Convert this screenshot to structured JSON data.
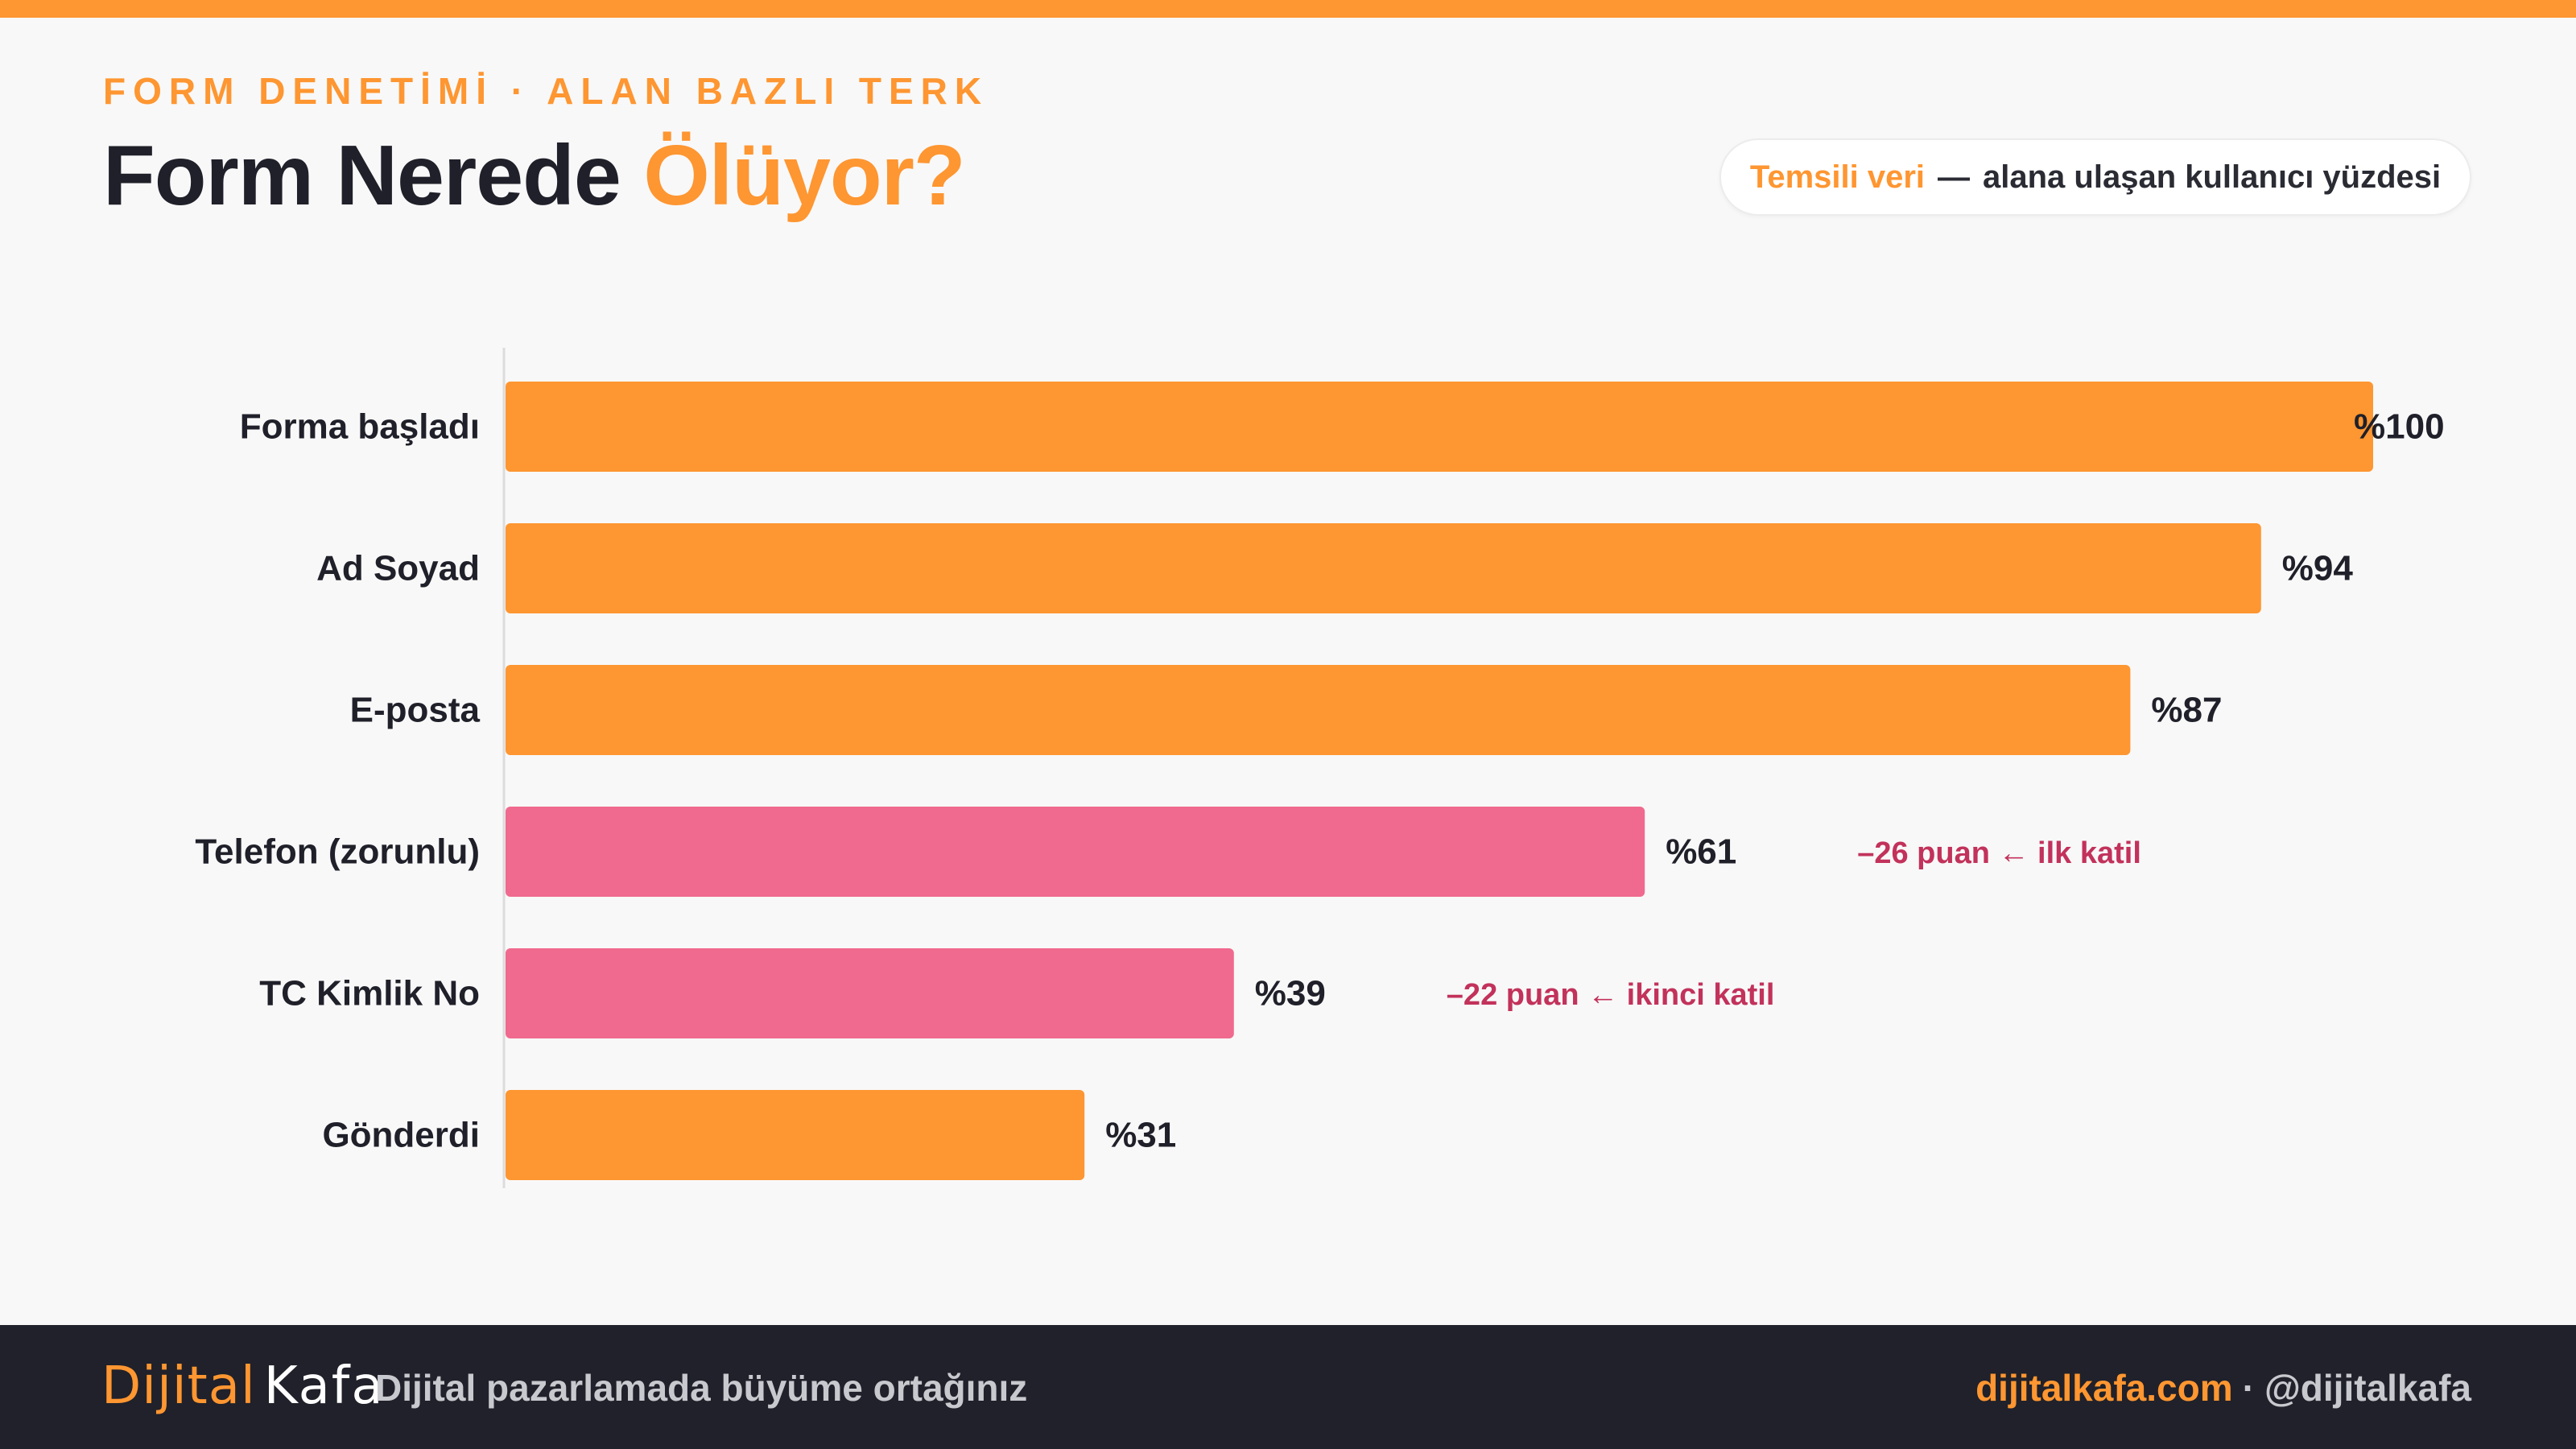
{
  "header": {
    "eyebrow": "FORM DENETİMİ · ALAN BAZLI TERK",
    "title_main": "Form Nerede ",
    "title_accent": "Ölüyor?",
    "badge_accent": "Temsili veri",
    "badge_sep": "—",
    "badge_text": "alana ulaşan kullanıcı yüzdesi"
  },
  "colors": {
    "accent": "#fe9631",
    "drop": "#f0698e",
    "annotation": "#c2325b",
    "dark": "#1f2029",
    "footer_bg": "#20212a"
  },
  "chart_data": {
    "type": "bar",
    "orientation": "horizontal",
    "categories": [
      "Forma başladı",
      "Ad Soyad",
      "E-posta",
      "Telefon (zorunlu)",
      "TC Kimlik No",
      "Gönderdi"
    ],
    "values": [
      100,
      94,
      87,
      61,
      39,
      31
    ],
    "value_labels": [
      "%100",
      "%94",
      "%87",
      "%61",
      "%39",
      "%31"
    ],
    "highlight": [
      false,
      false,
      false,
      true,
      true,
      false
    ],
    "annotations": [
      "",
      "",
      "",
      "–26 puan ← ilk katil",
      "–22 puan ← ikinci katil",
      ""
    ],
    "xlim": [
      0,
      100
    ],
    "grid": false
  },
  "footer": {
    "brand_part1": "Dijital",
    "brand_part2": "Kafa",
    "tagline": "Dijital pazarlamada büyüme ortağınız",
    "site": "dijitalkafa.com",
    "dot": "·",
    "handle": "@dijitalkafa"
  }
}
